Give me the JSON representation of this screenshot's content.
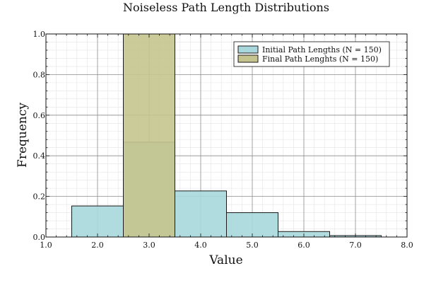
{
  "chart_data": {
    "type": "bar",
    "title": "Noiseless Path Length Distributions",
    "xlabel": "Value",
    "ylabel": "Frequency",
    "xlim": [
      1.0,
      8.0
    ],
    "ylim": [
      0.0,
      1.0
    ],
    "x_ticks": [
      "1.0",
      "2.0",
      "3.0",
      "4.0",
      "5.0",
      "6.0",
      "7.0",
      "8.0"
    ],
    "y_ticks": [
      "0.0",
      "0.2",
      "0.4",
      "0.6",
      "0.8",
      "1.0"
    ],
    "grid": true,
    "legend_position": "top-right",
    "series": [
      {
        "name": "Initial Path Lengths (N = 150)",
        "color": "#a8d8dc",
        "edge_color": "#1a1a1a",
        "bins": [
          {
            "x0": 1.5,
            "x1": 2.5,
            "value": 0.153
          },
          {
            "x0": 2.5,
            "x1": 3.5,
            "value": 0.467
          },
          {
            "x0": 3.5,
            "x1": 4.5,
            "value": 0.227
          },
          {
            "x0": 4.5,
            "x1": 5.5,
            "value": 0.12
          },
          {
            "x0": 5.5,
            "x1": 6.5,
            "value": 0.027
          },
          {
            "x0": 6.5,
            "x1": 7.5,
            "value": 0.007
          }
        ]
      },
      {
        "name": "Final Path Lenghts (N = 150)",
        "color": "#c5c48e",
        "edge_color": "#1a1a1a",
        "bins": [
          {
            "x0": 2.5,
            "x1": 3.5,
            "value": 1.0
          }
        ]
      }
    ]
  }
}
